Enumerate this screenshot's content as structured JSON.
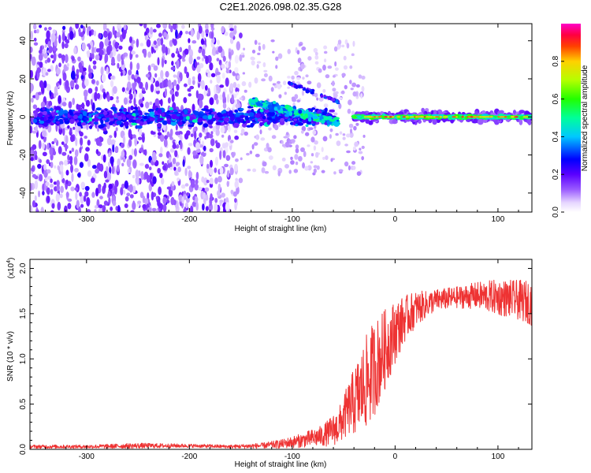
{
  "title": "C2E1.2026.098.02.35.G28",
  "chart_data": [
    {
      "type": "heatmap",
      "xlabel": "Height of straight line (km)",
      "ylabel": "Frequency (Hz)",
      "xlim": [
        -355,
        133
      ],
      "ylim": [
        -50,
        49
      ],
      "xticks": [
        -300,
        -200,
        -100,
        0,
        100
      ],
      "xtick_labels": [
        "-300",
        "-200",
        "-100",
        "0",
        "100"
      ],
      "yticks": [
        -40,
        -20,
        0,
        20,
        40
      ],
      "ytick_labels": [
        "-40",
        "-20",
        "0",
        "20",
        "40"
      ],
      "colorbar": {
        "label": "Normalized spectral amplitude",
        "range": [
          0,
          1
        ],
        "ticks": [
          0.0,
          0.2,
          0.4,
          0.6,
          0.8
        ],
        "tick_labels": [
          "0.0",
          "0.2",
          "0.4",
          "0.6",
          "0.8"
        ]
      },
      "features": [
        {
          "name": "scattered noise",
          "x_range": [
            -355,
            -150
          ],
          "freq_range": [
            -50,
            49
          ],
          "amplitude": 0.1
        },
        {
          "name": "central band",
          "x_range": [
            -350,
            -60
          ],
          "freq_center": 0,
          "freq_halfwidth": 6,
          "amplitude": 0.3
        },
        {
          "name": "descending branch",
          "x_from": -140,
          "x_to": -55,
          "freq_from": 8,
          "freq_to": -3,
          "amplitude": 0.45
        },
        {
          "name": "upper arc",
          "x_from": -105,
          "x_to": -55,
          "freq_from": 18,
          "freq_to": 8,
          "amplitude": 0.3
        },
        {
          "name": "stable carrier",
          "x_range": [
            -40,
            133
          ],
          "freq_center": 0,
          "freq_halfwidth": 3,
          "amplitude": 0.6
        }
      ]
    },
    {
      "type": "line",
      "xlabel": "Height of straight line (km)",
      "ylabel": "SNR (10 * v/v)",
      "y_multiplier": "(x10",
      "y_multiplier_exp": "4",
      "y_multiplier_close": ")",
      "xlim": [
        -355,
        133
      ],
      "ylim": [
        0,
        2.1
      ],
      "xticks": [
        -300,
        -200,
        -100,
        0,
        100
      ],
      "xtick_labels": [
        "-300",
        "-200",
        "-100",
        "0",
        "100"
      ],
      "yticks": [
        0.0,
        0.5,
        1.0,
        1.5,
        2.0
      ],
      "ytick_labels": [
        "0.0",
        "0.5",
        "1.0",
        "1.5",
        "2.0"
      ],
      "line_color": "#ee3333",
      "envelope": {
        "x": [
          -355,
          -300,
          -250,
          -200,
          -160,
          -130,
          -110,
          -90,
          -70,
          -55,
          -45,
          -35,
          -25,
          -15,
          -5,
          0,
          10,
          20,
          30,
          40,
          60,
          80,
          100,
          120,
          133
        ],
        "center": [
          0.03,
          0.03,
          0.04,
          0.04,
          0.03,
          0.04,
          0.06,
          0.1,
          0.15,
          0.25,
          0.45,
          0.6,
          0.8,
          1.0,
          1.2,
          1.3,
          1.45,
          1.55,
          1.6,
          1.65,
          1.68,
          1.7,
          1.68,
          1.65,
          1.62
        ],
        "spread": [
          0.02,
          0.02,
          0.03,
          0.02,
          0.02,
          0.03,
          0.05,
          0.08,
          0.12,
          0.2,
          0.3,
          0.45,
          0.55,
          0.5,
          0.4,
          0.35,
          0.25,
          0.2,
          0.15,
          0.12,
          0.12,
          0.15,
          0.2,
          0.22,
          0.25
        ]
      }
    }
  ]
}
